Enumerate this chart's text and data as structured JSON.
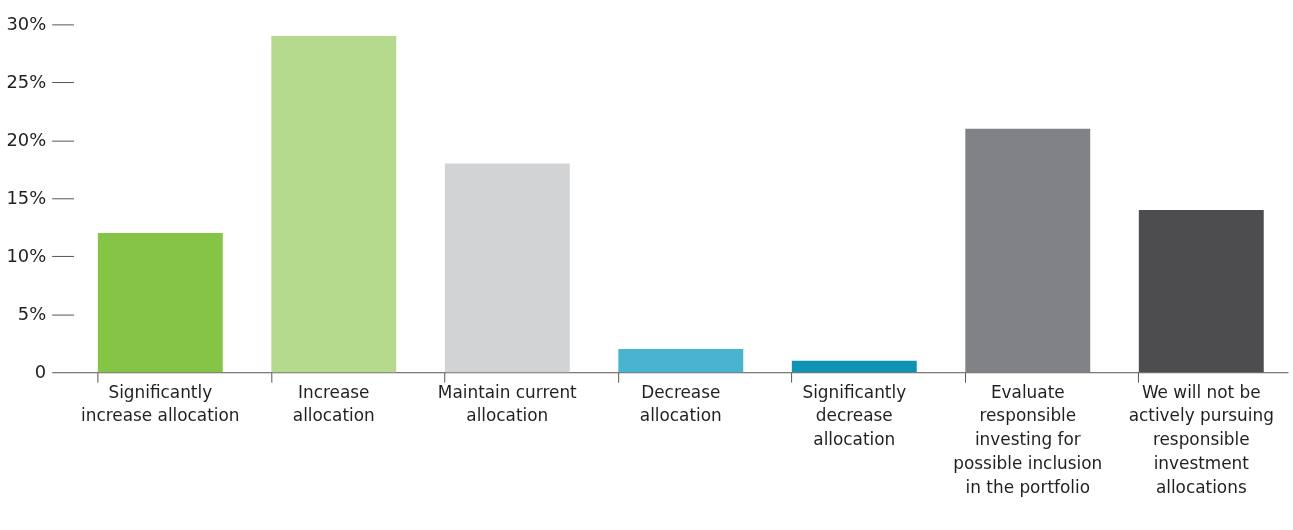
{
  "chart_data": {
    "type": "bar",
    "categories": [
      "Significantly\nincrease allocation",
      "Increase\nallocation",
      "Maintain current\nallocation",
      "Decrease\nallocation",
      "Significantly\ndecrease\nallocation",
      "Evaluate\nresponsible\ninvesting for\npossible inclusion\nin the portfolio",
      "We will not be\nactively pursuing\nresponsible\ninvestment\nallocations"
    ],
    "values": [
      12,
      29,
      18,
      2,
      1,
      21,
      14
    ],
    "colors": [
      "#86c446",
      "#b5d98d",
      "#d1d3d4",
      "#4ab3cf",
      "#0f93b5",
      "#808285",
      "#4d4d4f"
    ],
    "ylim": [
      0,
      30
    ],
    "yticks": [
      {
        "value": 0,
        "label": "0"
      },
      {
        "value": 5,
        "label": "5%"
      },
      {
        "value": 10,
        "label": "10%"
      },
      {
        "value": 15,
        "label": "15%"
      },
      {
        "value": 20,
        "label": "20%"
      },
      {
        "value": 25,
        "label": "25%"
      },
      {
        "value": 30,
        "label": "30%"
      }
    ],
    "grid": false
  }
}
